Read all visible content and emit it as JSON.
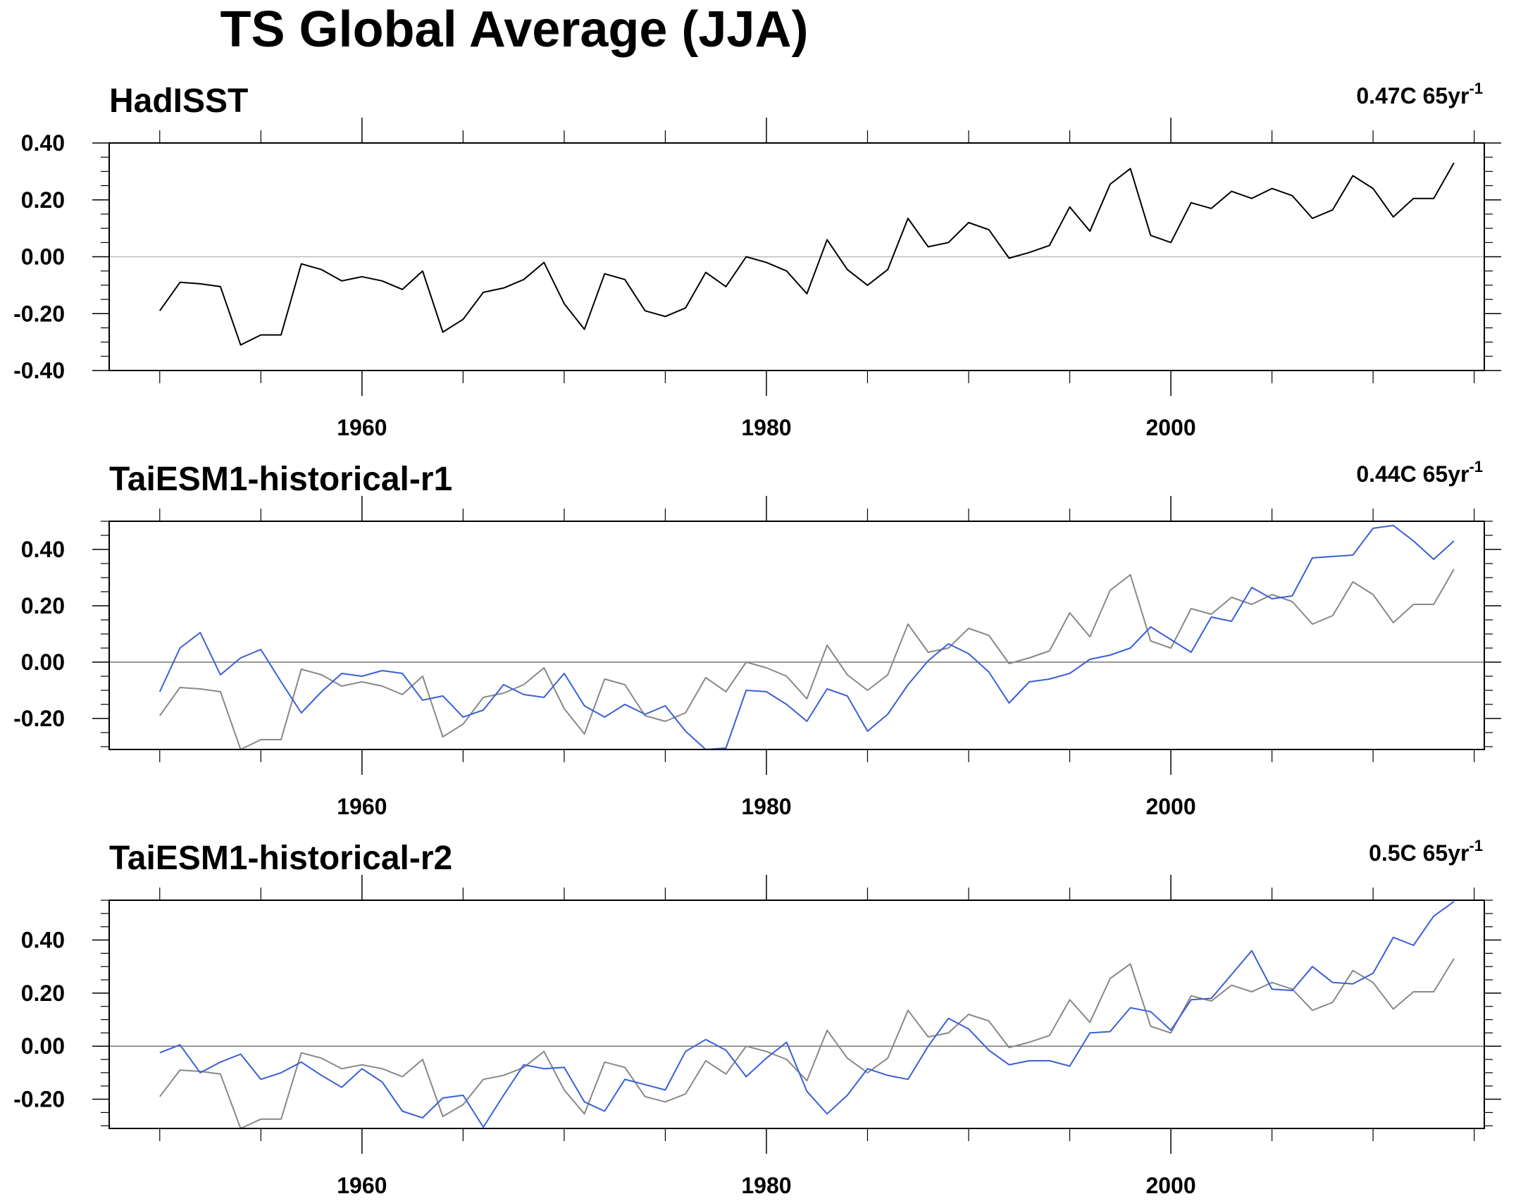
{
  "title": "TS Global Average (JJA)",
  "colors": {
    "observed": "#000000",
    "observed_overlay": "#888888",
    "model": "#3a5fd6",
    "zero_line_top": "#bbbbbb",
    "zero_line": "#777777"
  },
  "chart_data": [
    {
      "type": "line",
      "title": "HadISST",
      "trend_text": "0.47C 65yr",
      "trend_sup": "-1",
      "xlabel": "",
      "ylabel": "",
      "xlim": [
        1947.5,
        2015.5
      ],
      "ylim": [
        -0.4,
        0.4
      ],
      "xticks": [
        1960,
        1980,
        2000
      ],
      "xtick_labels": [
        "1960",
        "1980",
        "2000"
      ],
      "yticks": [
        0.4,
        0.2,
        0.0,
        -0.2,
        -0.4
      ],
      "ytick_labels": [
        "0.40",
        "0.20",
        "0.00",
        "-0.20",
        "-0.40"
      ],
      "x": [
        1950,
        1951,
        1952,
        1953,
        1954,
        1955,
        1956,
        1957,
        1958,
        1959,
        1960,
        1961,
        1962,
        1963,
        1964,
        1965,
        1966,
        1967,
        1968,
        1969,
        1970,
        1971,
        1972,
        1973,
        1974,
        1975,
        1976,
        1977,
        1978,
        1979,
        1980,
        1981,
        1982,
        1983,
        1984,
        1985,
        1986,
        1987,
        1988,
        1989,
        1990,
        1991,
        1992,
        1993,
        1994,
        1995,
        1996,
        1997,
        1998,
        1999,
        2000,
        2001,
        2002,
        2003,
        2004,
        2005,
        2006,
        2007,
        2008,
        2009,
        2010,
        2011,
        2012,
        2013,
        2014
      ],
      "series": [
        {
          "role": "observed",
          "values": [
            -0.19,
            -0.09,
            -0.095,
            -0.105,
            -0.31,
            -0.275,
            -0.275,
            -0.025,
            -0.045,
            -0.085,
            -0.07,
            -0.085,
            -0.115,
            -0.05,
            -0.265,
            -0.22,
            -0.125,
            -0.11,
            -0.08,
            -0.02,
            -0.165,
            -0.255,
            -0.06,
            -0.08,
            -0.19,
            -0.21,
            -0.18,
            -0.055,
            -0.105,
            0.0,
            -0.02,
            -0.05,
            -0.13,
            0.06,
            -0.045,
            -0.1,
            -0.045,
            0.135,
            0.035,
            0.05,
            0.12,
            0.095,
            -0.005,
            0.015,
            0.04,
            0.175,
            0.09,
            0.255,
            0.31,
            0.075,
            0.05,
            0.19,
            0.17,
            0.23,
            0.205,
            0.24,
            0.215,
            0.135,
            0.165,
            0.285,
            0.24,
            0.14,
            0.205,
            0.205,
            0.33
          ]
        }
      ]
    },
    {
      "type": "line",
      "title": "TaiESM1-historical-r1",
      "trend_text": "0.44C 65yr",
      "trend_sup": "-1",
      "xlabel": "",
      "ylabel": "",
      "xlim": [
        1947.5,
        2015.5
      ],
      "ylim": [
        -0.31,
        0.5
      ],
      "xticks": [
        1960,
        1980,
        2000
      ],
      "xtick_labels": [
        "1960",
        "1980",
        "2000"
      ],
      "yticks": [
        0.4,
        0.2,
        0.0,
        -0.2
      ],
      "ytick_labels": [
        "0.40",
        "0.20",
        "0.00",
        "-0.20"
      ],
      "x": [
        1950,
        1951,
        1952,
        1953,
        1954,
        1955,
        1956,
        1957,
        1958,
        1959,
        1960,
        1961,
        1962,
        1963,
        1964,
        1965,
        1966,
        1967,
        1968,
        1969,
        1970,
        1971,
        1972,
        1973,
        1974,
        1975,
        1976,
        1977,
        1978,
        1979,
        1980,
        1981,
        1982,
        1983,
        1984,
        1985,
        1986,
        1987,
        1988,
        1989,
        1990,
        1991,
        1992,
        1993,
        1994,
        1995,
        1996,
        1997,
        1998,
        1999,
        2000,
        2001,
        2002,
        2003,
        2004,
        2005,
        2006,
        2007,
        2008,
        2009,
        2010,
        2011,
        2012,
        2013,
        2014
      ],
      "series": [
        {
          "role": "observed",
          "values": [
            -0.19,
            -0.09,
            -0.095,
            -0.105,
            -0.31,
            -0.275,
            -0.275,
            -0.025,
            -0.045,
            -0.085,
            -0.07,
            -0.085,
            -0.115,
            -0.05,
            -0.265,
            -0.22,
            -0.125,
            -0.11,
            -0.08,
            -0.02,
            -0.165,
            -0.255,
            -0.06,
            -0.08,
            -0.19,
            -0.21,
            -0.18,
            -0.055,
            -0.105,
            0.0,
            -0.02,
            -0.05,
            -0.13,
            0.06,
            -0.045,
            -0.1,
            -0.045,
            0.135,
            0.035,
            0.05,
            0.12,
            0.095,
            -0.005,
            0.015,
            0.04,
            0.175,
            0.09,
            0.255,
            0.31,
            0.075,
            0.05,
            0.19,
            0.17,
            0.23,
            0.205,
            0.24,
            0.215,
            0.135,
            0.165,
            0.285,
            0.24,
            0.14,
            0.205,
            0.205,
            0.33
          ]
        },
        {
          "role": "model",
          "values": [
            -0.105,
            0.05,
            0.105,
            -0.045,
            0.015,
            0.045,
            -0.07,
            -0.18,
            -0.105,
            -0.04,
            -0.05,
            -0.03,
            -0.04,
            -0.135,
            -0.12,
            -0.195,
            -0.17,
            -0.08,
            -0.115,
            -0.125,
            -0.04,
            -0.155,
            -0.195,
            -0.15,
            -0.185,
            -0.155,
            -0.245,
            -0.31,
            -0.305,
            -0.1,
            -0.105,
            -0.15,
            -0.21,
            -0.095,
            -0.12,
            -0.245,
            -0.185,
            -0.08,
            0.005,
            0.065,
            0.03,
            -0.035,
            -0.145,
            -0.07,
            -0.06,
            -0.04,
            0.01,
            0.025,
            0.05,
            0.125,
            0.08,
            0.035,
            0.16,
            0.145,
            0.265,
            0.225,
            0.235,
            0.37,
            0.375,
            0.38,
            0.475,
            0.485,
            0.43,
            0.365,
            0.43
          ]
        }
      ]
    },
    {
      "type": "line",
      "title": "TaiESM1-historical-r2",
      "trend_text": "0.5C 65yr",
      "trend_sup": "-1",
      "xlabel": "",
      "ylabel": "",
      "xlim": [
        1947.5,
        2015.5
      ],
      "ylim": [
        -0.31,
        0.55
      ],
      "xticks": [
        1960,
        1980,
        2000
      ],
      "xtick_labels": [
        "1960",
        "1980",
        "2000"
      ],
      "yticks": [
        0.4,
        0.2,
        0.0,
        -0.2
      ],
      "ytick_labels": [
        "0.40",
        "0.20",
        "0.00",
        "-0.20"
      ],
      "x": [
        1950,
        1951,
        1952,
        1953,
        1954,
        1955,
        1956,
        1957,
        1958,
        1959,
        1960,
        1961,
        1962,
        1963,
        1964,
        1965,
        1966,
        1967,
        1968,
        1969,
        1970,
        1971,
        1972,
        1973,
        1974,
        1975,
        1976,
        1977,
        1978,
        1979,
        1980,
        1981,
        1982,
        1983,
        1984,
        1985,
        1986,
        1987,
        1988,
        1989,
        1990,
        1991,
        1992,
        1993,
        1994,
        1995,
        1996,
        1997,
        1998,
        1999,
        2000,
        2001,
        2002,
        2003,
        2004,
        2005,
        2006,
        2007,
        2008,
        2009,
        2010,
        2011,
        2012,
        2013,
        2014
      ],
      "series": [
        {
          "role": "observed",
          "values": [
            -0.19,
            -0.09,
            -0.095,
            -0.105,
            -0.31,
            -0.275,
            -0.275,
            -0.025,
            -0.045,
            -0.085,
            -0.07,
            -0.085,
            -0.115,
            -0.05,
            -0.265,
            -0.22,
            -0.125,
            -0.11,
            -0.08,
            -0.02,
            -0.165,
            -0.255,
            -0.06,
            -0.08,
            -0.19,
            -0.21,
            -0.18,
            -0.055,
            -0.105,
            0.0,
            -0.02,
            -0.05,
            -0.13,
            0.06,
            -0.045,
            -0.1,
            -0.045,
            0.135,
            0.035,
            0.05,
            0.12,
            0.095,
            -0.005,
            0.015,
            0.04,
            0.175,
            0.09,
            0.255,
            0.31,
            0.075,
            0.05,
            0.19,
            0.17,
            0.23,
            0.205,
            0.24,
            0.215,
            0.135,
            0.165,
            0.285,
            0.24,
            0.14,
            0.205,
            0.205,
            0.33
          ]
        },
        {
          "role": "model",
          "values": [
            -0.025,
            0.005,
            -0.1,
            -0.06,
            -0.03,
            -0.125,
            -0.1,
            -0.06,
            -0.11,
            -0.155,
            -0.085,
            -0.135,
            -0.245,
            -0.27,
            -0.195,
            -0.185,
            -0.305,
            -0.185,
            -0.07,
            -0.085,
            -0.08,
            -0.21,
            -0.245,
            -0.125,
            -0.145,
            -0.165,
            -0.02,
            0.025,
            -0.015,
            -0.115,
            -0.045,
            0.015,
            -0.17,
            -0.255,
            -0.185,
            -0.085,
            -0.11,
            -0.125,
            0.0,
            0.105,
            0.065,
            -0.015,
            -0.07,
            -0.055,
            -0.055,
            -0.075,
            0.05,
            0.055,
            0.145,
            0.13,
            0.06,
            0.175,
            0.18,
            0.27,
            0.36,
            0.215,
            0.21,
            0.3,
            0.24,
            0.235,
            0.275,
            0.41,
            0.38,
            0.49,
            0.545
          ]
        }
      ]
    }
  ]
}
